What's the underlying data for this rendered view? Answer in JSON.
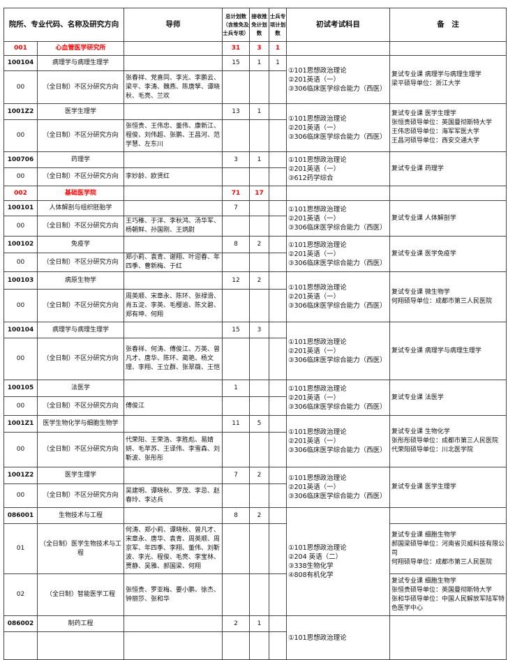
{
  "header": {
    "col_program": "院所、专业代码、名称及研究方向",
    "col_tutor": "导师",
    "col_total": "总计划数（含推免及士兵专项）",
    "col_recommend": "接收推免计划数",
    "col_soldier": "士兵专项计划数",
    "col_exam": "初试考试科目",
    "col_remarks": "备　注"
  },
  "sections": [
    {
      "code": "001",
      "name": "心血管医学研究所",
      "total": "31",
      "recommend": "3",
      "soldier": "1",
      "programs": [
        {
          "code": "100104",
          "name": "病理学与病理生理学",
          "total": "15",
          "recommend": "1",
          "soldier": "1",
          "exam": [
            "①101思想政治理论",
            "②201英语（一）",
            "③306临床医学综合能力（西医）"
          ],
          "remarks": [
            "复试专业课 病理学与病理生理学",
            "梁平硕导单位：浙江大学"
          ],
          "directions": [
            {
              "code": "00",
              "name": "（全日制）不区分研究方向",
              "tutors": "张春祥、党喜同、李光、李鹏云、梁平、李涛、魏燕、陈唐孥、谭晓秋、毛亮、兰欢"
            }
          ]
        },
        {
          "code": "1001Z2",
          "name": "医学生理学",
          "total": "13",
          "recommend": "1",
          "soldier": "",
          "exam": [
            "①101思想政治理论",
            "②201英语（一）",
            "③306临床医学综合能力（西医）"
          ],
          "remarks": [
            "复试专业课 医学生理学",
            "张恒贵硕导单位：英国曼彻斯特大学",
            "王伟忠硕导单位：海军军医大学",
            "王昌河硕导单位：西安交通大学"
          ],
          "directions": [
            {
              "code": "00",
              "name": "（全日制）不区分研究方向",
              "tutors": "张恒贵、王伟忠、董伟、康新江、程俊、刘伟超、张鹏、王昌河、范学慧、左东川"
            }
          ]
        },
        {
          "code": "100706",
          "name": "药理学",
          "total": "3",
          "recommend": "1",
          "soldier": "",
          "exam": [
            "①101思想政治理论",
            "②201英语（一）",
            "③612药学综合"
          ],
          "remarks": [
            "复试专业课 药理学"
          ],
          "directions": [
            {
              "code": "00",
              "name": "（全日制）不区分研究方向",
              "tutors": "李妙龄、欧贤红"
            }
          ]
        }
      ]
    },
    {
      "code": "002",
      "name": "基础医学院",
      "total": "71",
      "recommend": "17",
      "soldier": "",
      "programs": [
        {
          "code": "100101",
          "name": "人体解剖与组织胚胎学",
          "total": "7",
          "recommend": "",
          "soldier": "",
          "exam": [
            "①101思想政治理论",
            "②201英语（一）",
            "③306临床医学综合能力（西医）"
          ],
          "remarks": [
            "复试专业课 人体解剖学"
          ],
          "directions": [
            {
              "code": "00",
              "name": "（全日制）不区分研究方向",
              "tutors": "王巧稚、于洋、李秋鸿、汤华军、杨朝鲜、孙国刚、王炳尉"
            }
          ]
        },
        {
          "code": "100102",
          "name": "免疫学",
          "total": "8",
          "recommend": "2",
          "soldier": "",
          "exam": [
            "①101思想政治理论",
            "②201英语（一）",
            "③306临床医学综合能力（西医）"
          ],
          "remarks": [
            "复试专业课 医学免疫学"
          ],
          "directions": [
            {
              "code": "00",
              "name": "（全日制）不区分研究方向",
              "tutors": "郑小莉、袁青、谢翔、叶迎春、年四季、曹新梅、于红"
            }
          ]
        },
        {
          "code": "100103",
          "name": "病原生物学",
          "total": "12",
          "recommend": "2",
          "soldier": "",
          "exam": [
            "①101思想政治理论",
            "②201英语（一）",
            "③306临床医学综合能力（西医）"
          ],
          "remarks": [
            "复试专业课 微生物学",
            "何翔硕导单位：成都市第三人民医院"
          ],
          "directions": [
            {
              "code": "00",
              "name": "（全日制）不区分研究方向",
              "tutors": "周英顺、宋章永、陈环、张禄滑、肖五淀、李英、毛樱逾、陈文碧、郑有坤、何翔"
            }
          ]
        },
        {
          "code": "100104",
          "name": "病理学与病理生理学",
          "total": "15",
          "recommend": "3",
          "soldier": "",
          "exam": [
            "①101思想政治理论",
            "②201英语（一）",
            "③306临床医学综合能力（西医）"
          ],
          "remarks": [
            "复试专业课 病理学与病理生理学"
          ],
          "directions": [
            {
              "code": "00",
              "name": "（全日制）不区分研究方向",
              "tutors": "张春祥、何涛、傅俊江、万英、曾凡才、唐华、陈环、蔺艳、杨文理、李翔、王立群、张翠薇、王恺"
            }
          ]
        },
        {
          "code": "100105",
          "name": "法医学",
          "total": "1",
          "recommend": "",
          "soldier": "",
          "exam": [
            "①101思想政治理论",
            "②201英语（一）",
            "③306临床医学综合能力（西医）"
          ],
          "remarks": [
            "复试专业课 法医学"
          ],
          "directions": [
            {
              "code": "00",
              "name": "（全日制）不区分研究方向",
              "tutors": "傅俊江"
            }
          ]
        },
        {
          "code": "1001Z1",
          "name": "医学生物化学与细胞生物学",
          "total": "11",
          "recommend": "5",
          "soldier": "",
          "exam": [
            "①101思想政治理论",
            "②201英语（一）",
            "③306临床医学综合能力（西医）"
          ],
          "remarks": [
            "复试专业课 生物化学",
            "张彤彤硕导单位：成都市第三人民医院",
            "代荣阳硕导单位：川北医学院"
          ],
          "directions": [
            {
              "code": "00",
              "name": "（全日制）不区分研究方向",
              "tutors": "代荣阳、王荣浩、李胜彪、易婧妍、毛苹苏、王译伟、李雪森、刘靳波、张彤彤"
            }
          ]
        },
        {
          "code": "1001Z2",
          "name": "医学生理学",
          "total": "7",
          "recommend": "2",
          "soldier": "",
          "exam": [
            "①101思想政治理论",
            "②201英语（一）",
            "③306临床医学综合能力（西医）"
          ],
          "remarks": [
            "复试专业课 医学生理学"
          ],
          "directions": [
            {
              "code": "00",
              "name": "（全日制）不区分研究方向",
              "tutors": "吴建明、谭晓秋、罗茂、李忌、赵春玲、李达兵"
            }
          ]
        },
        {
          "code": "086001",
          "name": "生物技术与工程",
          "total": "8",
          "recommend": "2",
          "soldier": "",
          "exam": [
            "①101思想政治理论",
            "②204 英语（二）",
            "③338生物化学",
            "④808有机化学"
          ],
          "directions": [
            {
              "code": "01",
              "name": "（全日制）医学生物技术与工程",
              "tutors": "何涛、郑小莉、谭晓秋、曾凡才、宋章永、唐华、袁青、周英顺、周京军、年四季、李翔、董伟、刘靳波、李光、程俊、毛亮、李宝林、贾静、吴雅、郝国梁、何翔",
              "remarks": [
                "复试专业课 细胞生物学",
                "郝国梁硕导单位：河南省贝威科技有限公司",
                "何翔硕导单位：成都市第三人民医院"
              ]
            },
            {
              "code": "02",
              "name": "（全日制）智能医学工程",
              "tutors": "张恒贵、罗亚梅、要小鹏、徐杰、钟丽莎、张和华",
              "remarks": [
                "复试专业课 细胞生物学",
                "张恒贵硕导单位：英国曼彻斯特大学",
                "张和华硕导单位：中国人民解放军陆军特色医学中心"
              ]
            }
          ]
        },
        {
          "code": "086002",
          "name": "制药工程",
          "total": "2",
          "recommend": "1",
          "soldier": "",
          "exam": [
            "①101思想政治理论"
          ],
          "directions": []
        }
      ]
    }
  ]
}
